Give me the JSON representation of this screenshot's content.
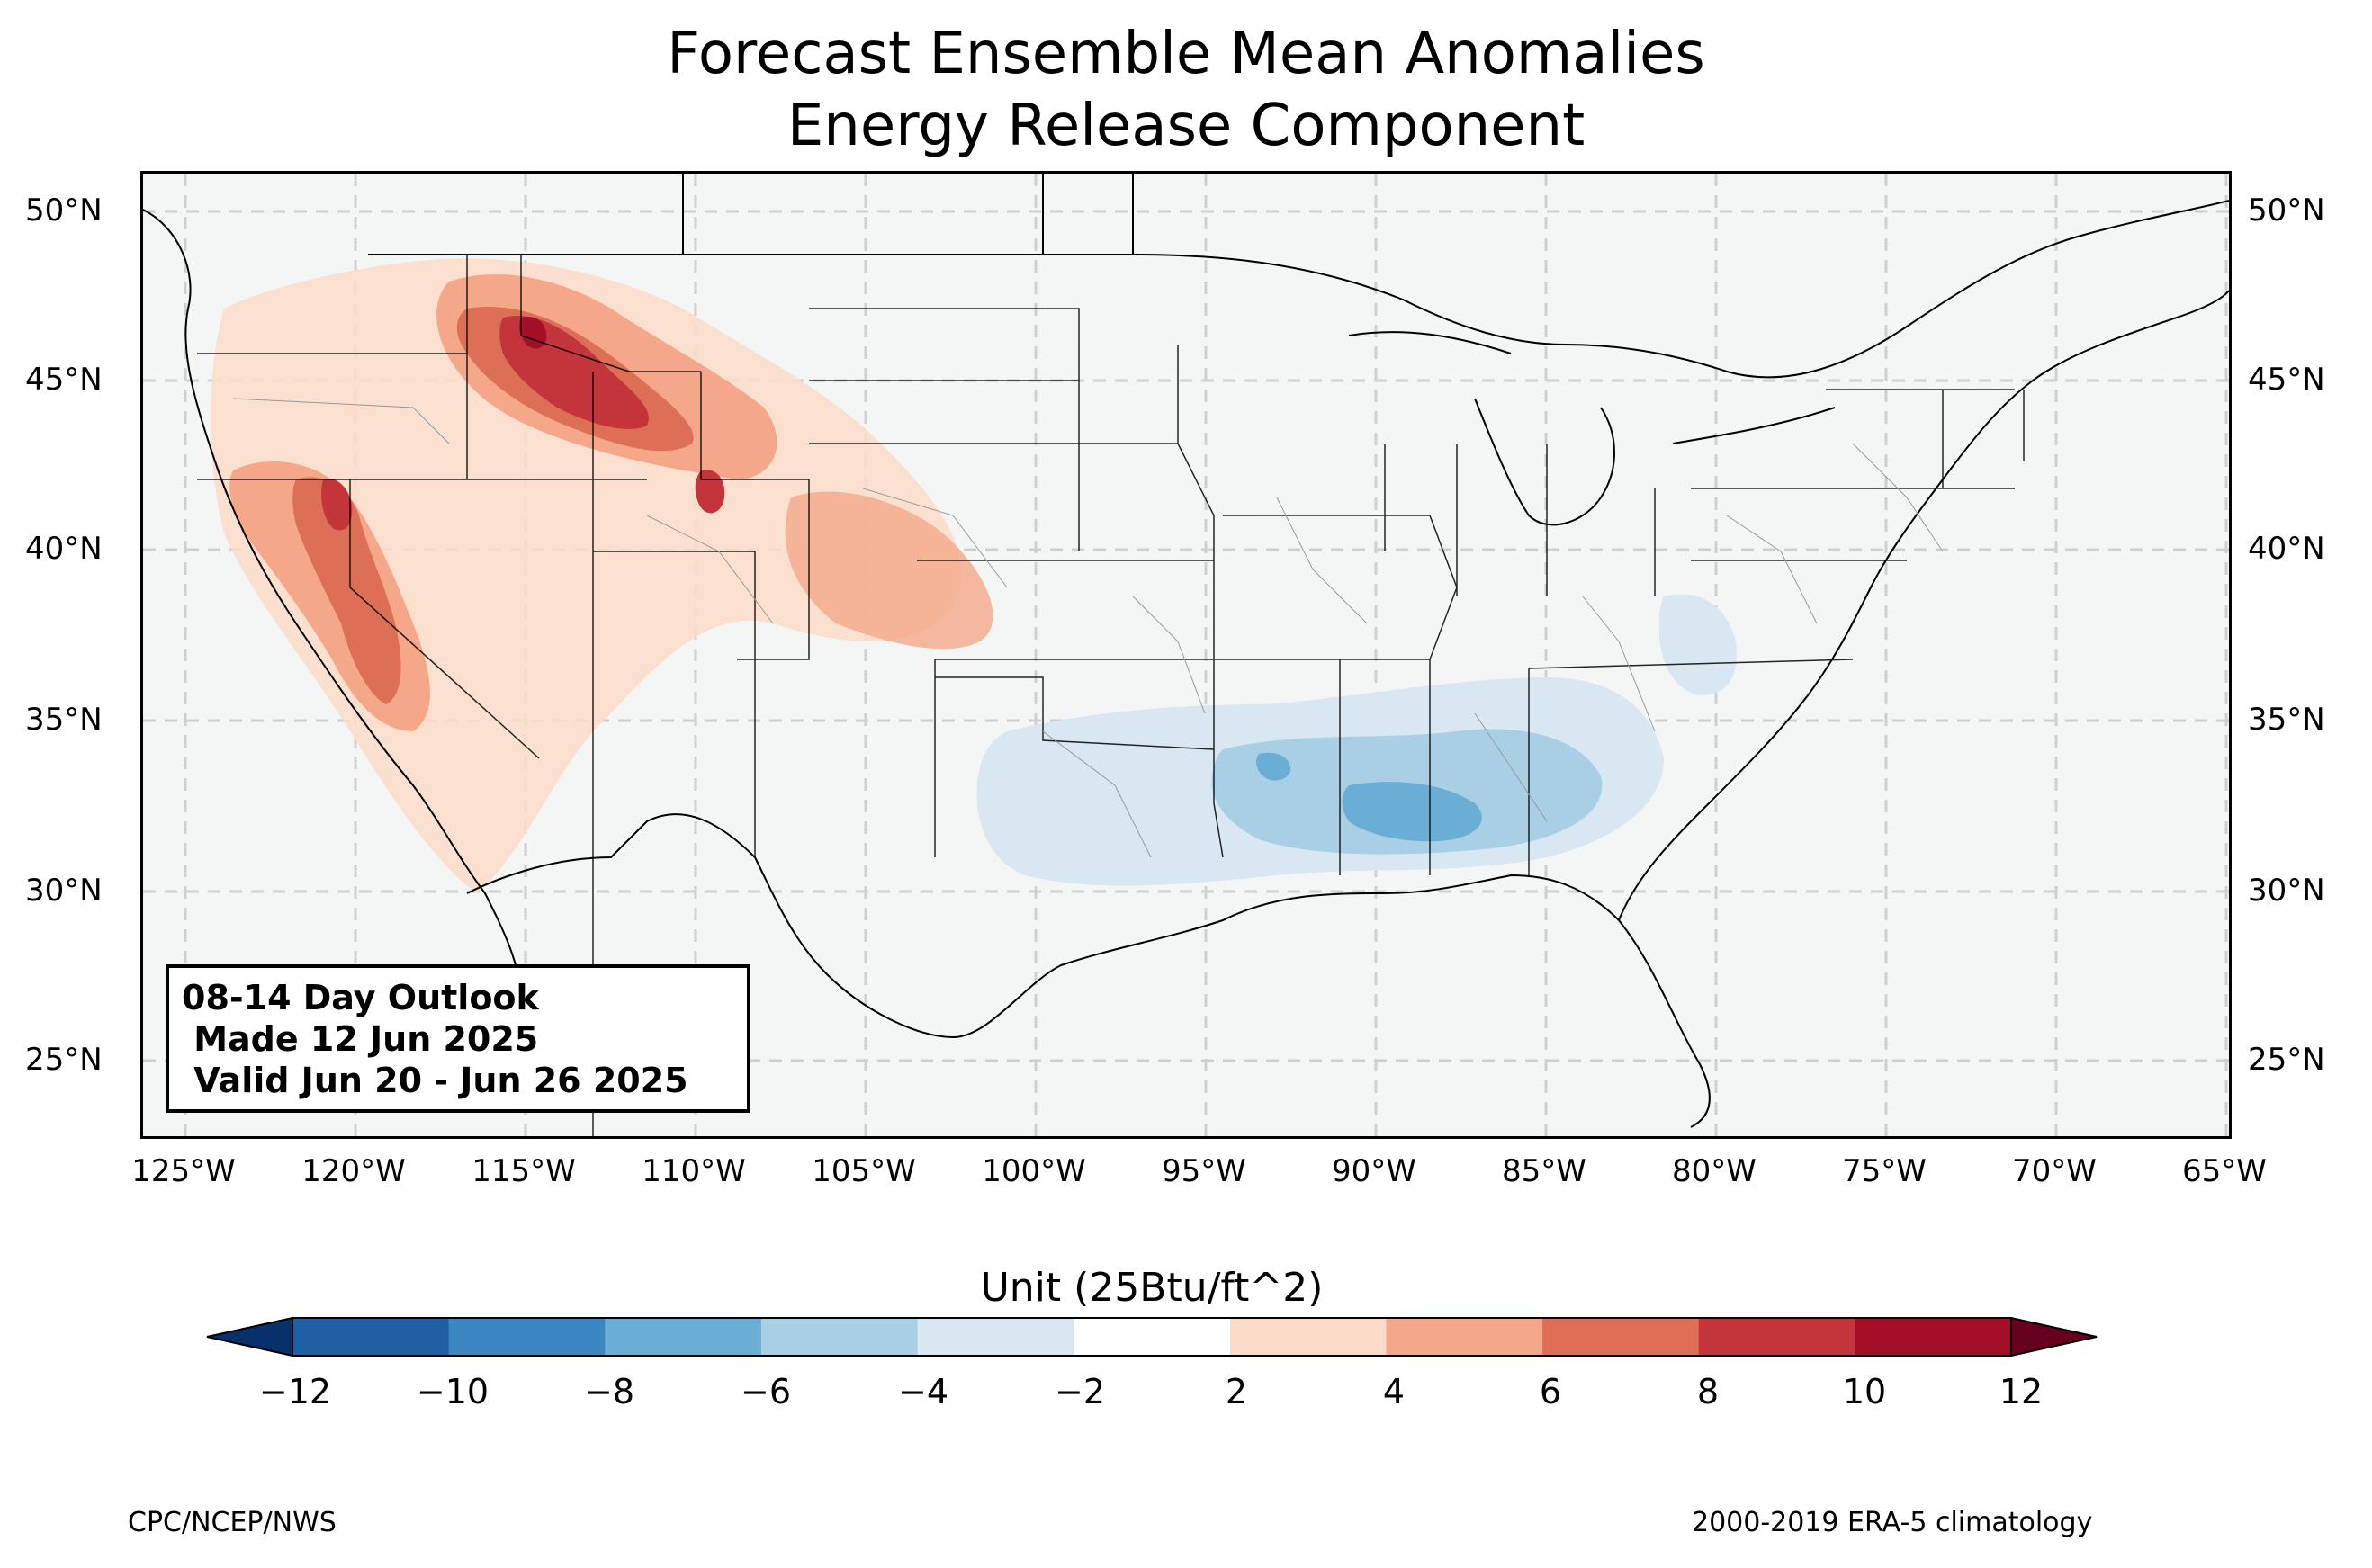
{
  "title": {
    "line1": "Forecast Ensemble Mean Anomalies",
    "line2": "Energy Release Component"
  },
  "axes": {
    "lat_labels": [
      "50°N",
      "45°N",
      "40°N",
      "35°N",
      "30°N",
      "25°N"
    ],
    "lon_labels": [
      "125°W",
      "120°W",
      "115°W",
      "110°W",
      "105°W",
      "100°W",
      "95°W",
      "90°W",
      "85°W",
      "80°W",
      "75°W",
      "70°W",
      "65°W"
    ]
  },
  "outlook_box": {
    "line1": "08-14 Day Outlook",
    "line2": " Made 12 Jun 2025",
    "line3": " Valid Jun 20 - Jun 26 2025"
  },
  "colorbar": {
    "label": "Unit (25Btu/ft^2)",
    "ticks": [
      "−12",
      "−10",
      "−8",
      "−6",
      "−4",
      "−2",
      "2",
      "4",
      "6",
      "8",
      "10",
      "12"
    ],
    "colors": [
      "#08306b",
      "#1f5fa3",
      "#3b87c2",
      "#6aaed6",
      "#a8cfe4",
      "#d8e7f1",
      "#ffffff",
      "#fcdcc9",
      "#f4a889",
      "#dd6f57",
      "#c3353a",
      "#a30f26",
      "#67001f"
    ]
  },
  "footer": {
    "left": "CPC/NCEP/NWS",
    "right": "2000-2019 ERA-5 climatology"
  },
  "map_colors": {
    "background": "#f4f6f5",
    "ocean": "#f4f6f5",
    "grid": "#cccccc"
  }
}
